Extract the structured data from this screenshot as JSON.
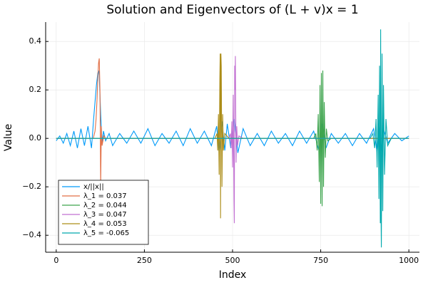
{
  "chart_data": {
    "type": "line",
    "title": "Solution and Eigenvectors of (L + v)x = 1",
    "x_label": "Index",
    "y_label": "Value",
    "xlim": [
      -30,
      1030
    ],
    "ylim": [
      -0.47,
      0.48
    ],
    "xticks": [
      0,
      250,
      500,
      750,
      1000
    ],
    "yticks": [
      {
        "value": -0.4,
        "label": "−0.4"
      },
      {
        "value": -0.2,
        "label": "−0.2"
      },
      {
        "value": 0,
        "label": "0.0"
      },
      0.2,
      0.4
    ],
    "grid": true,
    "legend": "bottom-left",
    "series": [
      {
        "name": "x/||x||",
        "color": "#009af9",
        "x": [
          0,
          10,
          20,
          30,
          40,
          50,
          60,
          70,
          80,
          90,
          100,
          106,
          110,
          114,
          118,
          120,
          122,
          126,
          130,
          134,
          140,
          150,
          160,
          180,
          200,
          220,
          240,
          260,
          280,
          300,
          320,
          340,
          360,
          380,
          400,
          420,
          440,
          455,
          462,
          470,
          478,
          485,
          495,
          505,
          515,
          530,
          550,
          570,
          590,
          610,
          630,
          650,
          670,
          690,
          710,
          730,
          745,
          755,
          765,
          780,
          800,
          820,
          840,
          860,
          880,
          900,
          910,
          918,
          922,
          928,
          940,
          960,
          980,
          1000
        ],
        "values": [
          -0.01,
          0.01,
          -0.02,
          0.02,
          -0.03,
          0.03,
          -0.04,
          0.04,
          -0.03,
          0.05,
          -0.04,
          0.08,
          0.15,
          0.22,
          0.27,
          0.28,
          0.26,
          0.1,
          -0.02,
          0.03,
          -0.01,
          0.02,
          -0.03,
          0.02,
          -0.02,
          0.03,
          -0.02,
          0.04,
          -0.03,
          0.02,
          -0.02,
          0.03,
          -0.03,
          0.04,
          -0.02,
          0.03,
          -0.03,
          0.05,
          -0.06,
          0.07,
          -0.05,
          0.06,
          -0.04,
          0.08,
          -0.06,
          0.04,
          -0.03,
          0.02,
          -0.03,
          0.03,
          -0.02,
          0.02,
          -0.03,
          0.03,
          -0.02,
          0.03,
          -0.05,
          0.06,
          -0.04,
          0.02,
          -0.02,
          0.02,
          -0.03,
          0.02,
          -0.02,
          0.04,
          -0.06,
          0.07,
          -0.05,
          0.04,
          -0.02,
          0.02,
          -0.01,
          0.01
        ]
      },
      {
        "name": "λ_1 = 0.037",
        "color": "#e26f46",
        "x": [
          0,
          105,
          110,
          113,
          116,
          118,
          120,
          122,
          124,
          126,
          128,
          130,
          135,
          140,
          1000
        ],
        "values": [
          0,
          0,
          0.03,
          0.08,
          0.17,
          0.25,
          0.31,
          0.33,
          0.2,
          -0.19,
          0.05,
          -0.03,
          0.01,
          0,
          0
        ]
      },
      {
        "name": "λ_2 = 0.044",
        "color": "#3da44d",
        "x": [
          0,
          730,
          736,
          740,
          743,
          746,
          748,
          750,
          752,
          754,
          756,
          758,
          760,
          763,
          766,
          770,
          780,
          1000
        ],
        "values": [
          0,
          0,
          0.02,
          -0.05,
          0.1,
          -0.18,
          0.22,
          -0.27,
          0.27,
          -0.28,
          0.28,
          -0.2,
          0.15,
          -0.08,
          0.04,
          -0.01,
          0,
          0
        ]
      },
      {
        "name": "λ_3 = 0.047",
        "color": "#c271d2",
        "x": [
          0,
          490,
          494,
          496,
          498,
          500,
          502,
          504,
          505,
          506,
          507,
          508,
          510,
          512,
          514,
          518,
          530,
          1000
        ],
        "values": [
          0,
          0,
          0.02,
          -0.04,
          0.07,
          -0.12,
          0.18,
          -0.25,
          -0.35,
          0.3,
          0.2,
          0.34,
          -0.1,
          0.05,
          -0.03,
          0.01,
          0,
          0
        ]
      },
      {
        "name": "λ_4 = 0.053",
        "color": "#ac8d18",
        "x": [
          0,
          450,
          456,
          458,
          460,
          462,
          464,
          465,
          466,
          467,
          468,
          470,
          472,
          474,
          478,
          490,
          1000
        ],
        "values": [
          0,
          0,
          0.02,
          -0.05,
          0.1,
          -0.15,
          0.25,
          0.35,
          -0.33,
          0.35,
          0.3,
          -0.2,
          0.1,
          -0.05,
          0.02,
          0,
          0
        ]
      },
      {
        "name": "λ_5 = -0.065",
        "color": "#00a9ad",
        "x": [
          0,
          890,
          898,
          903,
          907,
          910,
          913,
          915,
          917,
          919,
          920,
          921,
          922,
          924,
          926,
          928,
          931,
          935,
          940,
          950,
          1000
        ],
        "values": [
          0,
          0,
          0.02,
          -0.04,
          0.08,
          -0.12,
          0.18,
          -0.25,
          0.3,
          -0.35,
          0.45,
          -0.3,
          -0.45,
          0.35,
          -0.3,
          0.22,
          -0.15,
          0.08,
          -0.03,
          0,
          0
        ]
      }
    ]
  }
}
